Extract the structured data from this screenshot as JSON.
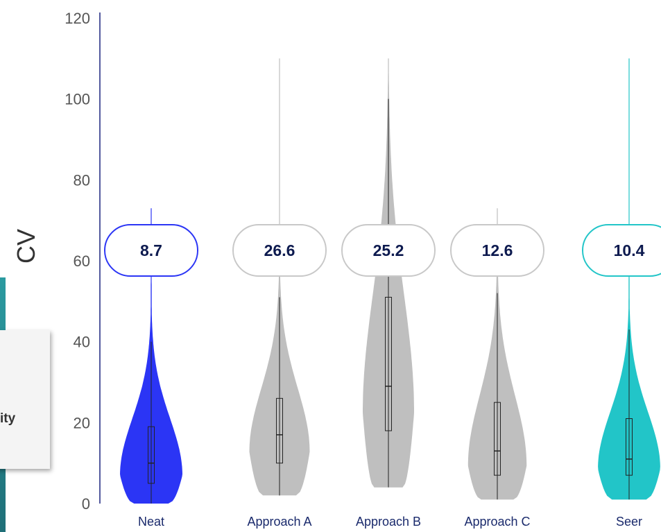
{
  "chart_data": {
    "type": "violin",
    "ylabel": "CV",
    "ylim": [
      0,
      120
    ],
    "yticks": [
      0,
      20,
      40,
      60,
      80,
      100,
      120
    ],
    "categories": [
      "Neat",
      "Approach A",
      "Approach B",
      "Approach C",
      "Seer"
    ],
    "series": [
      {
        "category": "Neat",
        "label": "8.7",
        "color": "#2b35f5",
        "pill_border": "#2b35f5",
        "min": 0,
        "q1": 5,
        "median": 10,
        "q3": 19,
        "whisker_high": 40,
        "max": 73
      },
      {
        "category": "Approach A",
        "label": "26.6",
        "color": "#bfbfbf",
        "pill_border": "#c8c8c8",
        "min": 2,
        "q1": 10,
        "median": 17,
        "q3": 26,
        "whisker_high": 51,
        "max": 110
      },
      {
        "category": "Approach B",
        "label": "25.2",
        "color": "#bfbfbf",
        "pill_border": "#c8c8c8",
        "min": 4,
        "q1": 18,
        "median": 29,
        "q3": 51,
        "whisker_high": 100,
        "max": 110
      },
      {
        "category": "Approach C",
        "label": "12.6",
        "color": "#bfbfbf",
        "pill_border": "#c8c8c8",
        "min": 1,
        "q1": 7,
        "median": 13,
        "q3": 25,
        "whisker_high": 52,
        "max": 73
      },
      {
        "category": "Seer",
        "label": "10.4",
        "color": "#22c5c8",
        "pill_border": "#22c5c8",
        "min": 1,
        "q1": 7,
        "median": 11,
        "q3": 21,
        "whisker_high": 43,
        "max": 110
      }
    ]
  },
  "side_card": {
    "text": "ity"
  }
}
